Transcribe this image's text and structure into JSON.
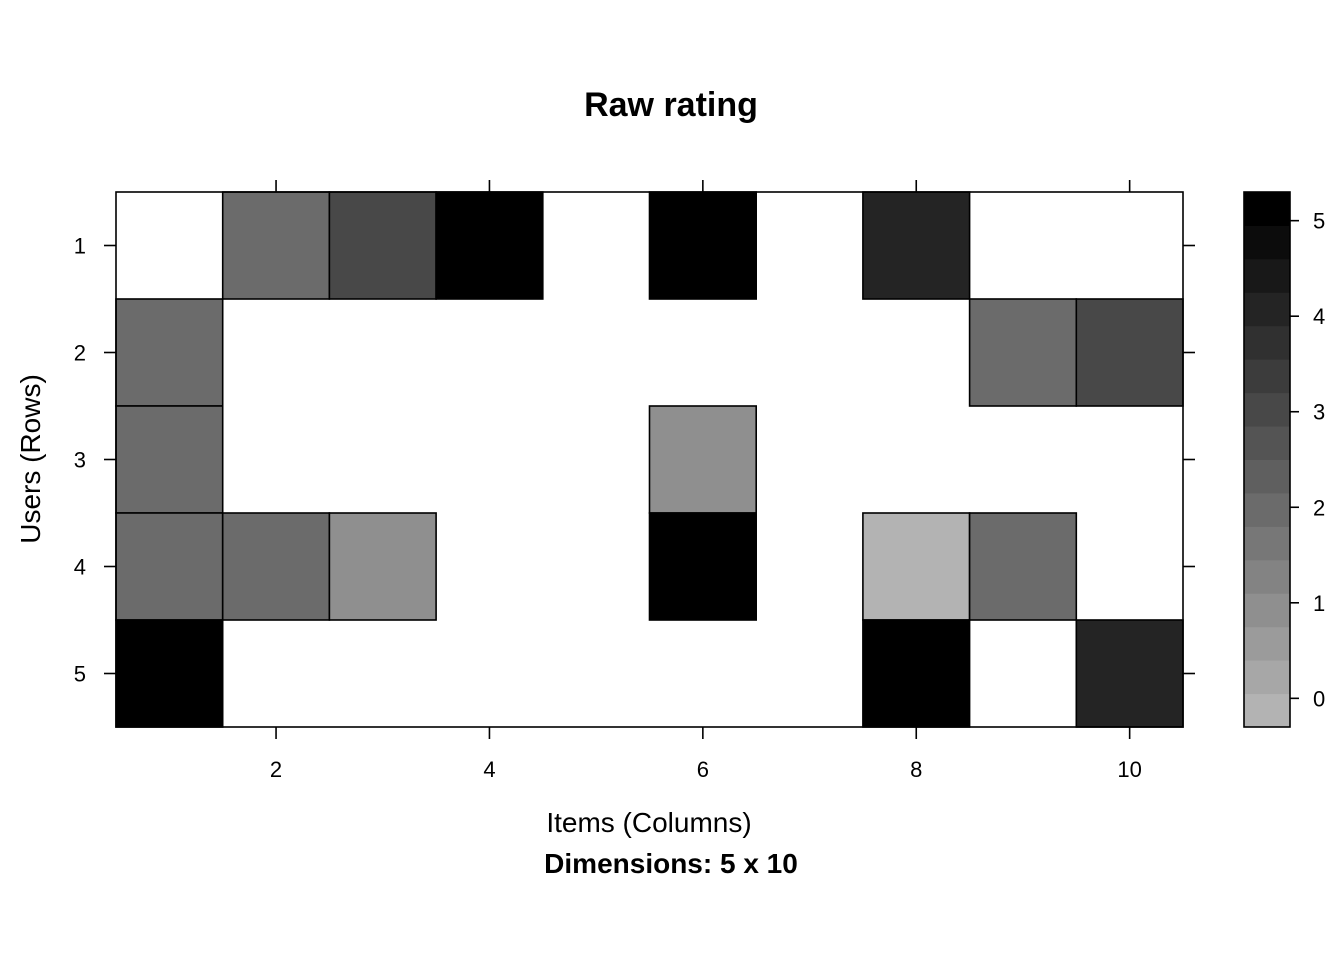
{
  "chart_data": {
    "type": "heatmap",
    "title": "Raw rating",
    "xlabel": "Items (Columns)",
    "ylabel": "Users (Rows)",
    "subtitle": "Dimensions: 5 x 10",
    "x_ticks": [
      2,
      4,
      6,
      8,
      10
    ],
    "y_ticks": [
      1,
      2,
      3,
      4,
      5
    ],
    "n_rows": 5,
    "n_cols": 10,
    "values": [
      [
        null,
        2,
        3,
        5,
        null,
        5,
        null,
        4,
        null,
        null
      ],
      [
        2,
        null,
        null,
        null,
        null,
        null,
        null,
        null,
        2,
        3
      ],
      [
        2,
        null,
        null,
        null,
        null,
        1,
        null,
        null,
        null,
        null
      ],
      [
        2,
        2,
        1,
        null,
        null,
        5,
        null,
        0,
        2,
        null
      ],
      [
        5,
        null,
        null,
        null,
        null,
        null,
        null,
        5,
        null,
        4
      ]
    ],
    "colorbar": {
      "ticks": [
        0,
        1,
        2,
        3,
        4,
        5
      ],
      "range": [
        -0.3,
        5.3
      ],
      "n_levels": 16,
      "low_color": "#b3b3b3",
      "high_color": "#000000"
    },
    "missing_color": "#ffffff",
    "grid": false
  }
}
